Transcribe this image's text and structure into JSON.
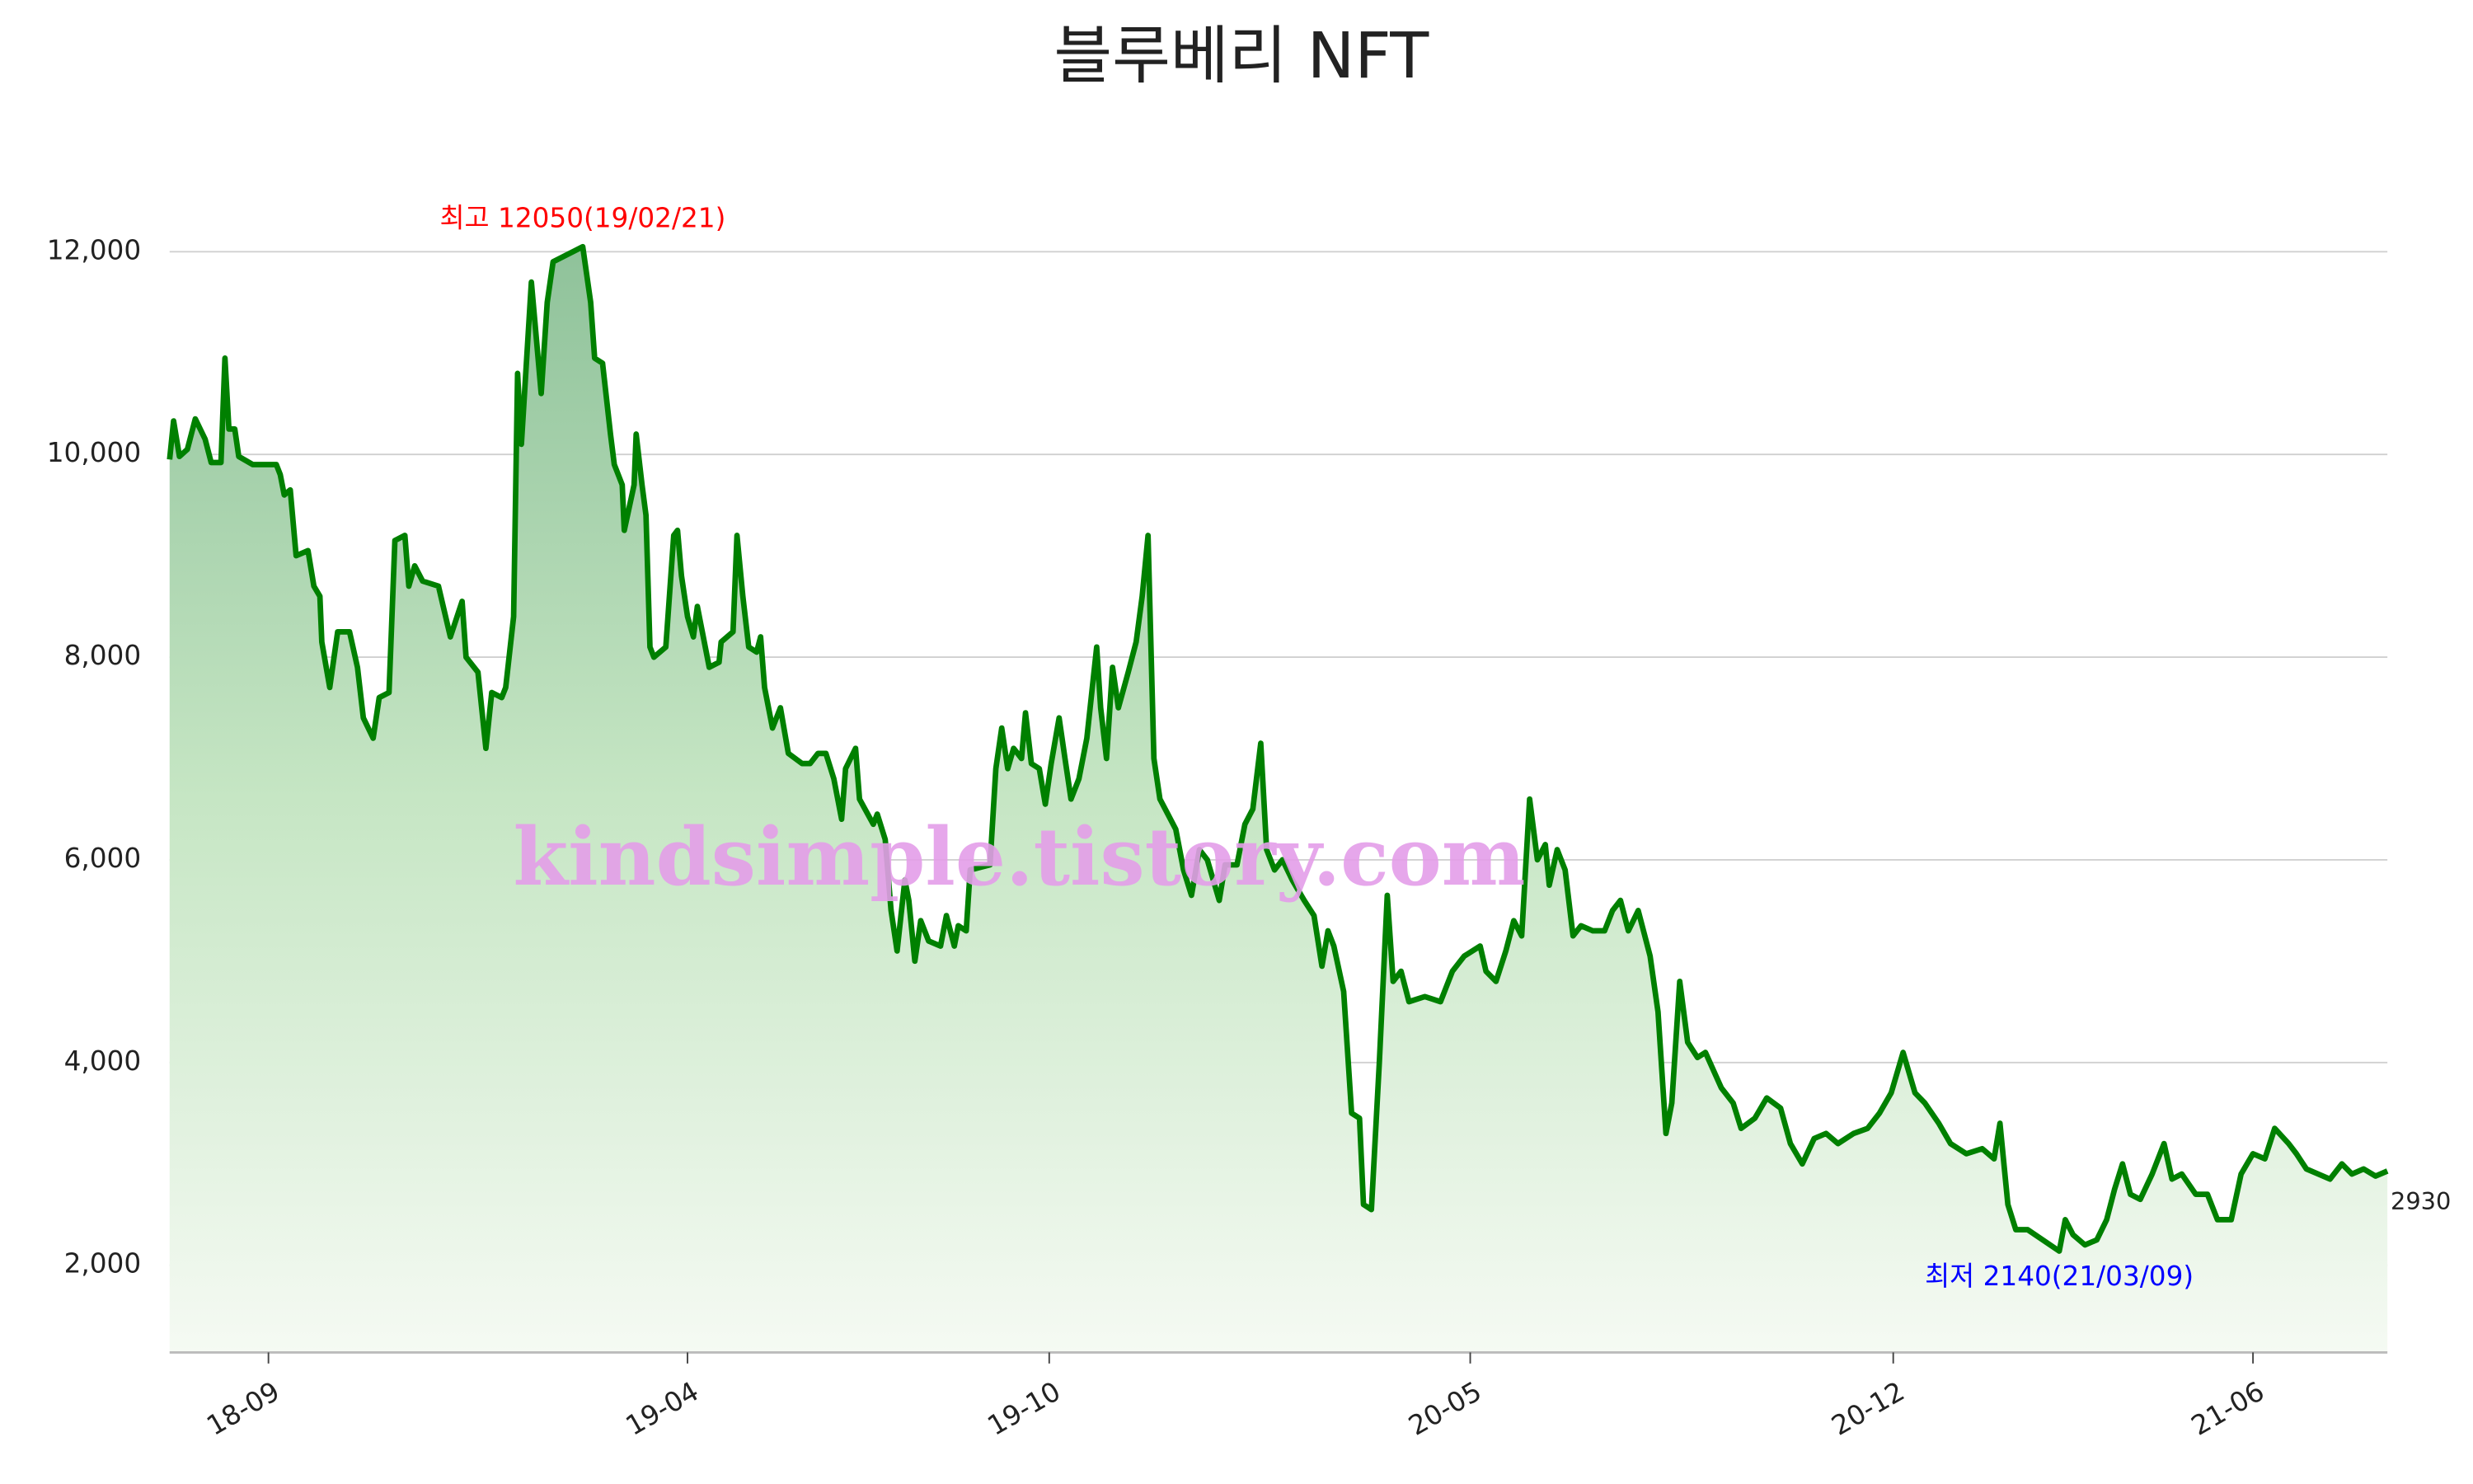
{
  "chart_data": {
    "type": "line",
    "title": "블루베리 NFT",
    "watermark": "kindsimple.tistory.com",
    "color": "#008000",
    "grid": true,
    "x": [
      "2018-07-27",
      "2018-07-29",
      "2018-08-01",
      "2018-08-05",
      "2018-08-09",
      "2018-08-14",
      "2018-08-17",
      "2018-08-22",
      "2018-08-24",
      "2018-08-26",
      "2018-08-29",
      "2018-08-31",
      "2018-09-07",
      "2018-09-19",
      "2018-09-21",
      "2018-09-23",
      "2018-09-26",
      "2018-09-29",
      "2018-10-05",
      "2018-10-08",
      "2018-10-11",
      "2018-10-12",
      "2018-10-16",
      "2018-10-20",
      "2018-10-26",
      "2018-10-30",
      "2018-11-02",
      "2018-11-07",
      "2018-11-10",
      "2018-11-15",
      "2018-11-18",
      "2018-11-23",
      "2018-11-25",
      "2018-11-28",
      "2018-12-02",
      "2018-12-10",
      "2018-12-16",
      "2018-12-22",
      "2018-12-24",
      "2018-12-30",
      "2019-01-03",
      "2019-01-06",
      "2019-01-11",
      "2019-01-13",
      "2019-01-17",
      "2019-01-19",
      "2019-01-21",
      "2019-01-26",
      "2019-01-31",
      "2019-02-03",
      "2019-02-06",
      "2019-02-21",
      "2019-02-25",
      "2019-02-27",
      "2019-03-03",
      "2019-03-07",
      "2019-03-09",
      "2019-03-13",
      "2019-03-14",
      "2019-03-19",
      "2019-03-20",
      "2019-03-23",
      "2019-03-25",
      "2019-03-27",
      "2019-03-29",
      "2019-04-04",
      "2019-04-08",
      "2019-04-10",
      "2019-04-12",
      "2019-04-15",
      "2019-04-18",
      "2019-04-20",
      "2019-04-26",
      "2019-05-01",
      "2019-05-02",
      "2019-05-08",
      "2019-05-10",
      "2019-05-13",
      "2019-05-16",
      "2019-05-20",
      "2019-05-22",
      "2019-05-24",
      "2019-05-28",
      "2019-06-01",
      "2019-06-05",
      "2019-06-12",
      "2019-06-16",
      "2019-06-20",
      "2019-06-24",
      "2019-06-28",
      "2019-07-02",
      "2019-07-04",
      "2019-07-09",
      "2019-07-11",
      "2019-07-18",
      "2019-07-20",
      "2019-07-24",
      "2019-07-27",
      "2019-07-30",
      "2019-08-03",
      "2019-08-05",
      "2019-08-08",
      "2019-08-11",
      "2019-08-15",
      "2019-08-21",
      "2019-08-24",
      "2019-08-28",
      "2019-08-30",
      "2019-09-03",
      "2019-09-05",
      "2019-09-15",
      "2019-09-18",
      "2019-09-21",
      "2019-09-24",
      "2019-09-27",
      "2019-10-01",
      "2019-10-03",
      "2019-10-06",
      "2019-10-10",
      "2019-10-13",
      "2019-10-16",
      "2019-10-20",
      "2019-10-23",
      "2019-10-26",
      "2019-10-30",
      "2019-11-03",
      "2019-11-08",
      "2019-11-10",
      "2019-11-13",
      "2019-11-16",
      "2019-11-19",
      "2019-11-24",
      "2019-11-28",
      "2019-12-01",
      "2019-12-04",
      "2019-12-07",
      "2019-12-10",
      "2019-12-14",
      "2019-12-18",
      "2019-12-22",
      "2019-12-26",
      "2019-12-30",
      "2020-01-03",
      "2020-01-09",
      "2020-01-12",
      "2020-01-18",
      "2020-01-22",
      "2020-01-26",
      "2020-01-30",
      "2020-02-02",
      "2020-02-06",
      "2020-02-10",
      "2020-02-15",
      "2020-02-21",
      "2020-02-26",
      "2020-03-01",
      "2020-03-04",
      "2020-03-07",
      "2020-03-12",
      "2020-03-16",
      "2020-03-20",
      "2020-03-22",
      "2020-03-26",
      "2020-03-30",
      "2020-04-03",
      "2020-04-06",
      "2020-04-10",
      "2020-04-14",
      "2020-04-22",
      "2020-04-30",
      "2020-05-06",
      "2020-05-12",
      "2020-05-20",
      "2020-05-23",
      "2020-05-28",
      "2020-06-02",
      "2020-06-06",
      "2020-06-10",
      "2020-06-14",
      "2020-06-18",
      "2020-06-22",
      "2020-06-24",
      "2020-06-28",
      "2020-07-02",
      "2020-07-06",
      "2020-07-10",
      "2020-07-16",
      "2020-07-22",
      "2020-07-26",
      "2020-07-30",
      "2020-08-03",
      "2020-08-08",
      "2020-08-14",
      "2020-08-18",
      "2020-08-22",
      "2020-08-25",
      "2020-08-29",
      "2020-09-02",
      "2020-09-07",
      "2020-09-11",
      "2020-09-19",
      "2020-09-25",
      "2020-09-29",
      "2020-10-06",
      "2020-10-12",
      "2020-10-19",
      "2020-10-24",
      "2020-10-30",
      "2020-11-05",
      "2020-11-11",
      "2020-11-17",
      "2020-11-25",
      "2020-12-02",
      "2020-12-08",
      "2020-12-14",
      "2020-12-20",
      "2020-12-26",
      "2020-12-31",
      "2021-01-07",
      "2021-01-13",
      "2021-01-21",
      "2021-01-29",
      "2021-02-04",
      "2021-02-07",
      "2021-02-11",
      "2021-02-15",
      "2021-02-21",
      "2021-03-09",
      "2021-03-12",
      "2021-03-16",
      "2021-03-22",
      "2021-03-28",
      "2021-04-02",
      "2021-04-06",
      "2021-04-10",
      "2021-04-14",
      "2021-04-19",
      "2021-04-25",
      "2021-05-01",
      "2021-05-05",
      "2021-05-10",
      "2021-05-17",
      "2021-05-23",
      "2021-05-28",
      "2021-06-04",
      "2021-06-09",
      "2021-06-15",
      "2021-06-21",
      "2021-06-26",
      "2021-07-03",
      "2021-07-07",
      "2021-07-12",
      "2021-07-18",
      "2021-07-24",
      "2021-07-30",
      "2021-08-04",
      "2021-08-10",
      "2021-08-16",
      "2021-08-22"
    ],
    "values": [
      9950,
      10330,
      9980,
      10050,
      10350,
      10150,
      9920,
      9920,
      10950,
      10250,
      10250,
      9980,
      9900,
      9900,
      9800,
      9600,
      9650,
      9000,
      9050,
      8700,
      8600,
      8150,
      7700,
      8250,
      8250,
      7900,
      7400,
      7200,
      7600,
      7650,
      9150,
      9200,
      8700,
      8900,
      8750,
      8700,
      8200,
      8550,
      8000,
      7850,
      7100,
      7650,
      7600,
      7700,
      8400,
      10800,
      10100,
      11700,
      10600,
      11500,
      11900,
      12050,
      11500,
      10950,
      10900,
      10200,
      9900,
      9700,
      9250,
      9700,
      10200,
      9700,
      9400,
      8100,
      8000,
      8100,
      9200,
      9250,
      8800,
      8400,
      8200,
      8500,
      7900,
      7950,
      8150,
      8250,
      9200,
      8600,
      8100,
      8050,
      8200,
      7700,
      7300,
      7500,
      7050,
      6950,
      6950,
      7050,
      7050,
      6800,
      6400,
      6900,
      7100,
      6600,
      6350,
      6450,
      6200,
      5500,
      5100,
      5800,
      5600,
      5000,
      5400,
      5200,
      5150,
      5450,
      5150,
      5350,
      5300,
      5900,
      5950,
      6900,
      7300,
      6900,
      7100,
      7000,
      7450,
      6950,
      6900,
      6550,
      6950,
      7400,
      7000,
      6600,
      6800,
      7200,
      8100,
      7500,
      7000,
      7900,
      7500,
      7850,
      8150,
      8600,
      9200,
      7000,
      6600,
      6450,
      6300,
      5900,
      5650,
      6100,
      6000,
      5600,
      5950,
      5950,
      6350,
      6500,
      7150,
      6100,
      5900,
      6000,
      5800,
      5600,
      5450,
      4950,
      5300,
      5150,
      4700,
      3500,
      3450,
      2600,
      2550,
      4000,
      5650,
      4800,
      4900,
      4600,
      4650,
      4600,
      4900,
      5050,
      5150,
      4900,
      4800,
      5100,
      5400,
      5250,
      6600,
      6000,
      6150,
      5750,
      6100,
      5900,
      5250,
      5350,
      5300,
      5300,
      5500,
      5600,
      5300,
      5500,
      5050,
      4500,
      3300,
      3600,
      4800,
      4200,
      4050,
      4100,
      3750,
      3600,
      3350,
      3450,
      3650,
      3550,
      3200,
      3000,
      3250,
      3300,
      3200,
      3300,
      3350,
      3500,
      3700,
      4100,
      3700,
      3600,
      3400,
      3200,
      3100,
      3150,
      3050,
      3400,
      2600,
      2350,
      2350,
      2140,
      2450,
      2300,
      2200,
      2250,
      2450,
      2750,
      3000,
      2700,
      2650,
      2900,
      3200,
      2850,
      2900,
      2700,
      2700,
      2450,
      2450,
      2900,
      3100,
      3050,
      3350,
      3200,
      3100,
      2950,
      2900,
      2850,
      3000,
      2900,
      2950,
      2880,
      2930
    ],
    "xlim": [
      "2018-07-27",
      "2021-08-22"
    ],
    "xticks": [
      {
        "value": "2018-09-15",
        "label": "18-09"
      },
      {
        "value": "2019-04-15",
        "label": "19-04"
      },
      {
        "value": "2019-10-15",
        "label": "19-10"
      },
      {
        "value": "2020-05-15",
        "label": "20-05"
      },
      {
        "value": "2020-12-15",
        "label": "20-12"
      },
      {
        "value": "2021-06-15",
        "label": "21-06"
      }
    ],
    "ylim": [
      1140,
      12700
    ],
    "yticks": [
      {
        "value": 2000,
        "label": "2,000"
      },
      {
        "value": 4000,
        "label": "4,000"
      },
      {
        "value": 6000,
        "label": "6,000"
      },
      {
        "value": 8000,
        "label": "8,000"
      },
      {
        "value": 10000,
        "label": "10,000"
      },
      {
        "value": 12000,
        "label": "12,000"
      }
    ],
    "annotations": [
      {
        "text": "최고 12050(19/02/21)",
        "x": "2019-02-21",
        "y": 12050,
        "color": "#ff0000",
        "position": "above"
      },
      {
        "text": "최저 2140(21/03/09)",
        "x": "2021-03-09",
        "y": 2140,
        "color": "#0000ff",
        "position": "below"
      }
    ]
  }
}
